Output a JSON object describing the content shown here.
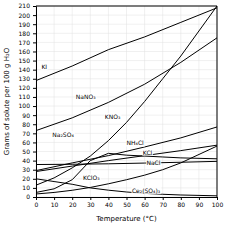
{
  "chart_data": {
    "type": "line",
    "xlabel": "Temperature (°C)",
    "ylabel": "Grams of solute per 100 g H₂O",
    "xlim": [
      0,
      100
    ],
    "ylim": [
      0,
      210
    ],
    "xticks": [
      0,
      10,
      20,
      30,
      40,
      50,
      60,
      70,
      80,
      90,
      100
    ],
    "yticks": [
      0,
      10,
      20,
      30,
      40,
      50,
      60,
      70,
      80,
      90,
      100,
      110,
      120,
      130,
      140,
      150,
      160,
      170,
      180,
      190,
      200,
      210
    ],
    "grid": true,
    "color": "#000000",
    "series": [
      {
        "x": [
          0,
          20,
          40,
          60,
          80,
          100
        ],
        "values": [
          128,
          144,
          162,
          176,
          192,
          208
        ]
      },
      {
        "x": [
          0,
          20,
          40,
          60,
          80,
          100
        ],
        "values": [
          73,
          87,
          104,
          124,
          148,
          175
        ]
      },
      {
        "x": [
          0,
          10,
          20,
          30,
          40,
          50,
          60,
          70,
          80,
          100
        ],
        "values": [
          13,
          21,
          32,
          45,
          62,
          82,
          105,
          130,
          155,
          210
        ]
      },
      {
        "x": [
          0,
          10,
          20,
          30,
          40,
          50,
          60,
          70,
          80,
          100
        ],
        "values": [
          5,
          9,
          19,
          40,
          48,
          46,
          45,
          44,
          43,
          42
        ]
      },
      {
        "x": [
          0,
          20,
          40,
          60,
          80,
          100
        ],
        "values": [
          29,
          37.5,
          45.5,
          55,
          65,
          77
        ]
      },
      {
        "x": [
          0,
          20,
          40,
          60,
          80,
          100
        ],
        "values": [
          28,
          34,
          40,
          45.5,
          51,
          57
        ]
      },
      {
        "x": [
          0,
          20,
          40,
          60,
          80,
          100
        ],
        "values": [
          35.7,
          36,
          36.5,
          37.3,
          38.2,
          39.2
        ]
      },
      {
        "x": [
          0,
          10,
          20,
          30,
          40,
          50,
          60,
          70,
          80,
          100
        ],
        "values": [
          3.3,
          5,
          7.4,
          10.5,
          14.5,
          19,
          24,
          30,
          37.5,
          56
        ]
      },
      {
        "x": [
          0,
          10,
          20,
          30,
          40,
          50,
          60,
          70,
          80,
          100
        ],
        "values": [
          20,
          17,
          14,
          10,
          7.5,
          5.5,
          4,
          3,
          2.2,
          1.3
        ]
      }
    ],
    "annotations": [
      {
        "text": "KI",
        "x": 3,
        "y": 143
      },
      {
        "text": "NaNO₃",
        "x": 22,
        "y": 110
      },
      {
        "text": "KNO₃",
        "x": 38,
        "y": 88
      },
      {
        "text": "Na₂SO₄",
        "x": 9,
        "y": 68
      },
      {
        "text": "NH₄Cl",
        "x": 50,
        "y": 59
      },
      {
        "text": "KCl",
        "x": 59,
        "y": 49
      },
      {
        "text": "NaCl",
        "x": 61,
        "y": 37.5
      },
      {
        "text": "KClO₃",
        "x": 26,
        "y": 21
      },
      {
        "text": "Ce₂(SO₄)₃",
        "x": 53,
        "y": 7
      }
    ]
  }
}
